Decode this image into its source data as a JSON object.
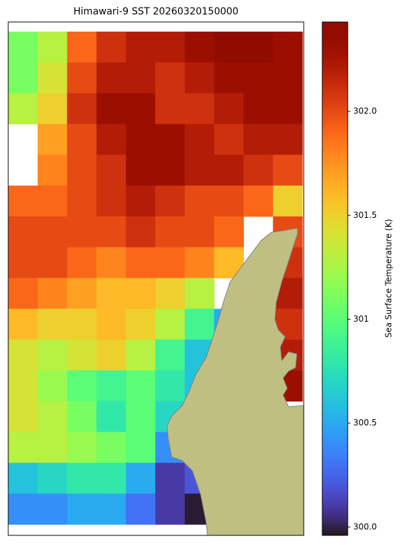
{
  "chart_data": {
    "type": "heatmap",
    "title": "Himawari-9 SST 20260320150000",
    "colorbar_label": "Sea Surface Temperature (K)",
    "colormap": "turbo",
    "clim": [
      299.96,
      302.43
    ],
    "cticks": [
      {
        "value": 300,
        "label": "300.0"
      },
      300.5,
      301,
      {
        "value": 301.5,
        "label": "301.5"
      },
      {
        "value": 302,
        "label": "302.0"
      }
    ],
    "values": [
      [
        301.1,
        301.3,
        301.9,
        302.1,
        302.2,
        302.2,
        302.3,
        302.4,
        302.4,
        302.3
      ],
      [
        301.1,
        301.4,
        302.0,
        302.2,
        302.2,
        302.1,
        302.2,
        302.3,
        302.3,
        302.3
      ],
      [
        301.3,
        301.5,
        302.1,
        302.3,
        302.3,
        302.1,
        302.1,
        302.2,
        302.3,
        302.3
      ],
      [
        null,
        301.7,
        302.0,
        302.2,
        302.3,
        302.3,
        302.2,
        302.1,
        302.2,
        302.2
      ],
      [
        null,
        301.8,
        302.0,
        302.1,
        302.3,
        302.3,
        302.2,
        302.2,
        302.1,
        302.0
      ],
      [
        301.9,
        301.9,
        302.0,
        302.1,
        302.2,
        302.1,
        302.0,
        302.0,
        301.9,
        301.5
      ],
      [
        302.0,
        302.0,
        302.0,
        302.0,
        302.1,
        302.0,
        302.0,
        301.9,
        null,
        302.0
      ],
      [
        302.0,
        302.0,
        301.9,
        301.8,
        301.9,
        301.9,
        301.8,
        301.6,
        null,
        302.1
      ],
      [
        301.9,
        301.8,
        301.7,
        301.6,
        301.6,
        301.5,
        301.3,
        null,
        null,
        302.2
      ],
      [
        301.6,
        301.5,
        301.5,
        301.6,
        301.5,
        301.3,
        300.9,
        300.5,
        null,
        302.1
      ],
      [
        301.4,
        301.3,
        301.4,
        301.5,
        301.3,
        300.9,
        300.6,
        null,
        null,
        302.2
      ],
      [
        301.4,
        301.2,
        301.0,
        300.9,
        301.0,
        300.8,
        300.6,
        null,
        null,
        302.3
      ],
      [
        301.4,
        301.3,
        301.1,
        300.8,
        301.0,
        300.7,
        300.3,
        null,
        null,
        null
      ],
      [
        301.3,
        301.3,
        301.2,
        301.1,
        301.0,
        300.4,
        null,
        null,
        null,
        null
      ],
      [
        300.6,
        300.7,
        300.8,
        300.8,
        300.5,
        300.1,
        300.2,
        null,
        null,
        null
      ],
      [
        300.4,
        300.4,
        300.5,
        300.5,
        300.3,
        300.1,
        299.98,
        null,
        null,
        null
      ]
    ]
  }
}
